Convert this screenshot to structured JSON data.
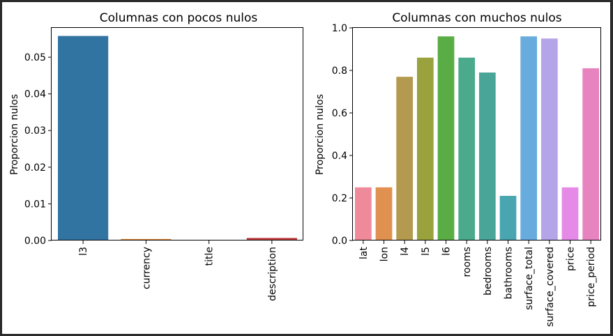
{
  "chart_data": [
    {
      "type": "bar",
      "title": "Columnas con pocos nulos",
      "xlabel": "",
      "ylabel": "Proporcion nulos",
      "ylim": [
        0,
        0.058
      ],
      "yticks": [
        "0.00",
        "0.01",
        "0.02",
        "0.03",
        "0.04",
        "0.05"
      ],
      "categories": [
        "l3",
        "currency",
        "title",
        "description"
      ],
      "values": [
        0.0558,
        0.0004,
        0.0,
        0.0007
      ],
      "colors": [
        "#3274a1",
        "#e1812c",
        "#3a923a",
        "#c03d3e"
      ]
    },
    {
      "type": "bar",
      "title": "Columnas con muchos nulos",
      "xlabel": "",
      "ylabel": "Proporcion nulos",
      "ylim": [
        0,
        1.0
      ],
      "yticks": [
        "0.0",
        "0.2",
        "0.4",
        "0.6",
        "0.8",
        "1.0"
      ],
      "categories": [
        "lat",
        "lon",
        "l4",
        "l5",
        "l6",
        "rooms",
        "bedrooms",
        "bathrooms",
        "surface_total",
        "surface_covered",
        "price",
        "price_period"
      ],
      "values": [
        0.25,
        0.25,
        0.77,
        0.86,
        0.96,
        0.86,
        0.79,
        0.21,
        0.96,
        0.95,
        0.25,
        0.81
      ],
      "colors": [
        "#ef8a9b",
        "#e1914f",
        "#b49a4e",
        "#99a23d",
        "#5aac45",
        "#4aaa8b",
        "#49a598",
        "#49a6b1",
        "#68acdd",
        "#b4a4e8",
        "#e58be7",
        "#e783be"
      ]
    }
  ]
}
